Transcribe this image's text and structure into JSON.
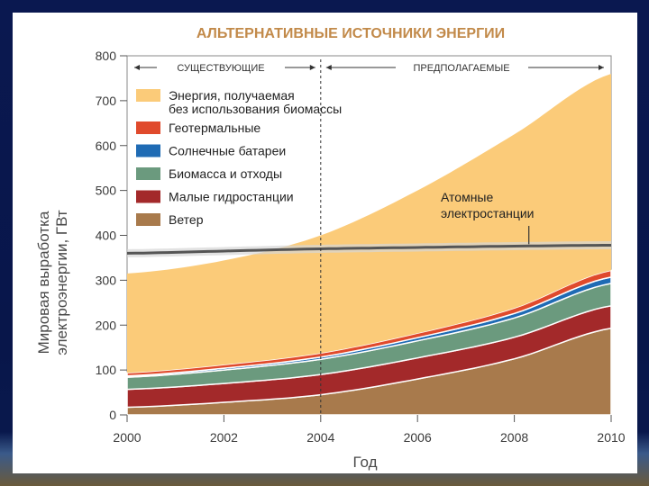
{
  "chart_data": {
    "type": "area",
    "title": "АЛЬТЕРНАТИВНЫЕ ИСТОЧНИКИ ЭНЕРГИИ",
    "ylabel_line1": "Мировая выработка",
    "ylabel_line2": "электроэнергии, ГВт",
    "xlabel": "Год",
    "x": [
      2000,
      2002,
      2004,
      2006,
      2008,
      2010
    ],
    "xlim": [
      2000,
      2010
    ],
    "ylim": [
      0,
      800
    ],
    "yticks": [
      0,
      100,
      200,
      300,
      400,
      500,
      600,
      700,
      800
    ],
    "xticks": [
      2000,
      2002,
      2004,
      2006,
      2008,
      2010
    ],
    "divider_year": 2004,
    "period_existing": "СУЩЕСТВУЮЩИЕ",
    "period_projected": "ПРЕДПОЛАГАЕМЫЕ",
    "series": [
      {
        "name": "Ветер",
        "color": "#a87a4c",
        "values": [
          17,
          28,
          45,
          80,
          125,
          193
        ]
      },
      {
        "name": "Малые гидростанции",
        "color": "#a3292a",
        "values": [
          40,
          42,
          45,
          47,
          48,
          50
        ]
      },
      {
        "name": "Биомасса и отходы",
        "color": "#6b9a7e",
        "values": [
          27,
          30,
          34,
          38,
          43,
          50
        ]
      },
      {
        "name": "Солнечные батареи",
        "color": "#1f6bb4",
        "values": [
          3,
          4,
          5,
          7,
          10,
          14
        ]
      },
      {
        "name": "Геотермальные",
        "color": "#e04a2c",
        "values": [
          7,
          8,
          9,
          10,
          12,
          15
        ]
      },
      {
        "name": "Энергия, получаемая без использования биомассы",
        "color": "#fbcb79",
        "values": [
          221,
          232,
          262,
          318,
          387,
          438
        ]
      }
    ],
    "legend_order": [
      5,
      4,
      3,
      2,
      1,
      0
    ],
    "legend_lines": [
      [
        "Энергия, получаемая",
        "без использования биомассы"
      ],
      [
        "Геотермальные"
      ],
      [
        "Солнечные батареи"
      ],
      [
        "Биомасса и отходы"
      ],
      [
        "Малые гидростанции"
      ],
      [
        "Ветер"
      ]
    ],
    "nuclear": {
      "name_line1": "Атомные",
      "name_line2": "электростанции",
      "values": [
        360,
        365,
        370,
        373,
        376,
        378
      ],
      "color": "#555555"
    }
  }
}
